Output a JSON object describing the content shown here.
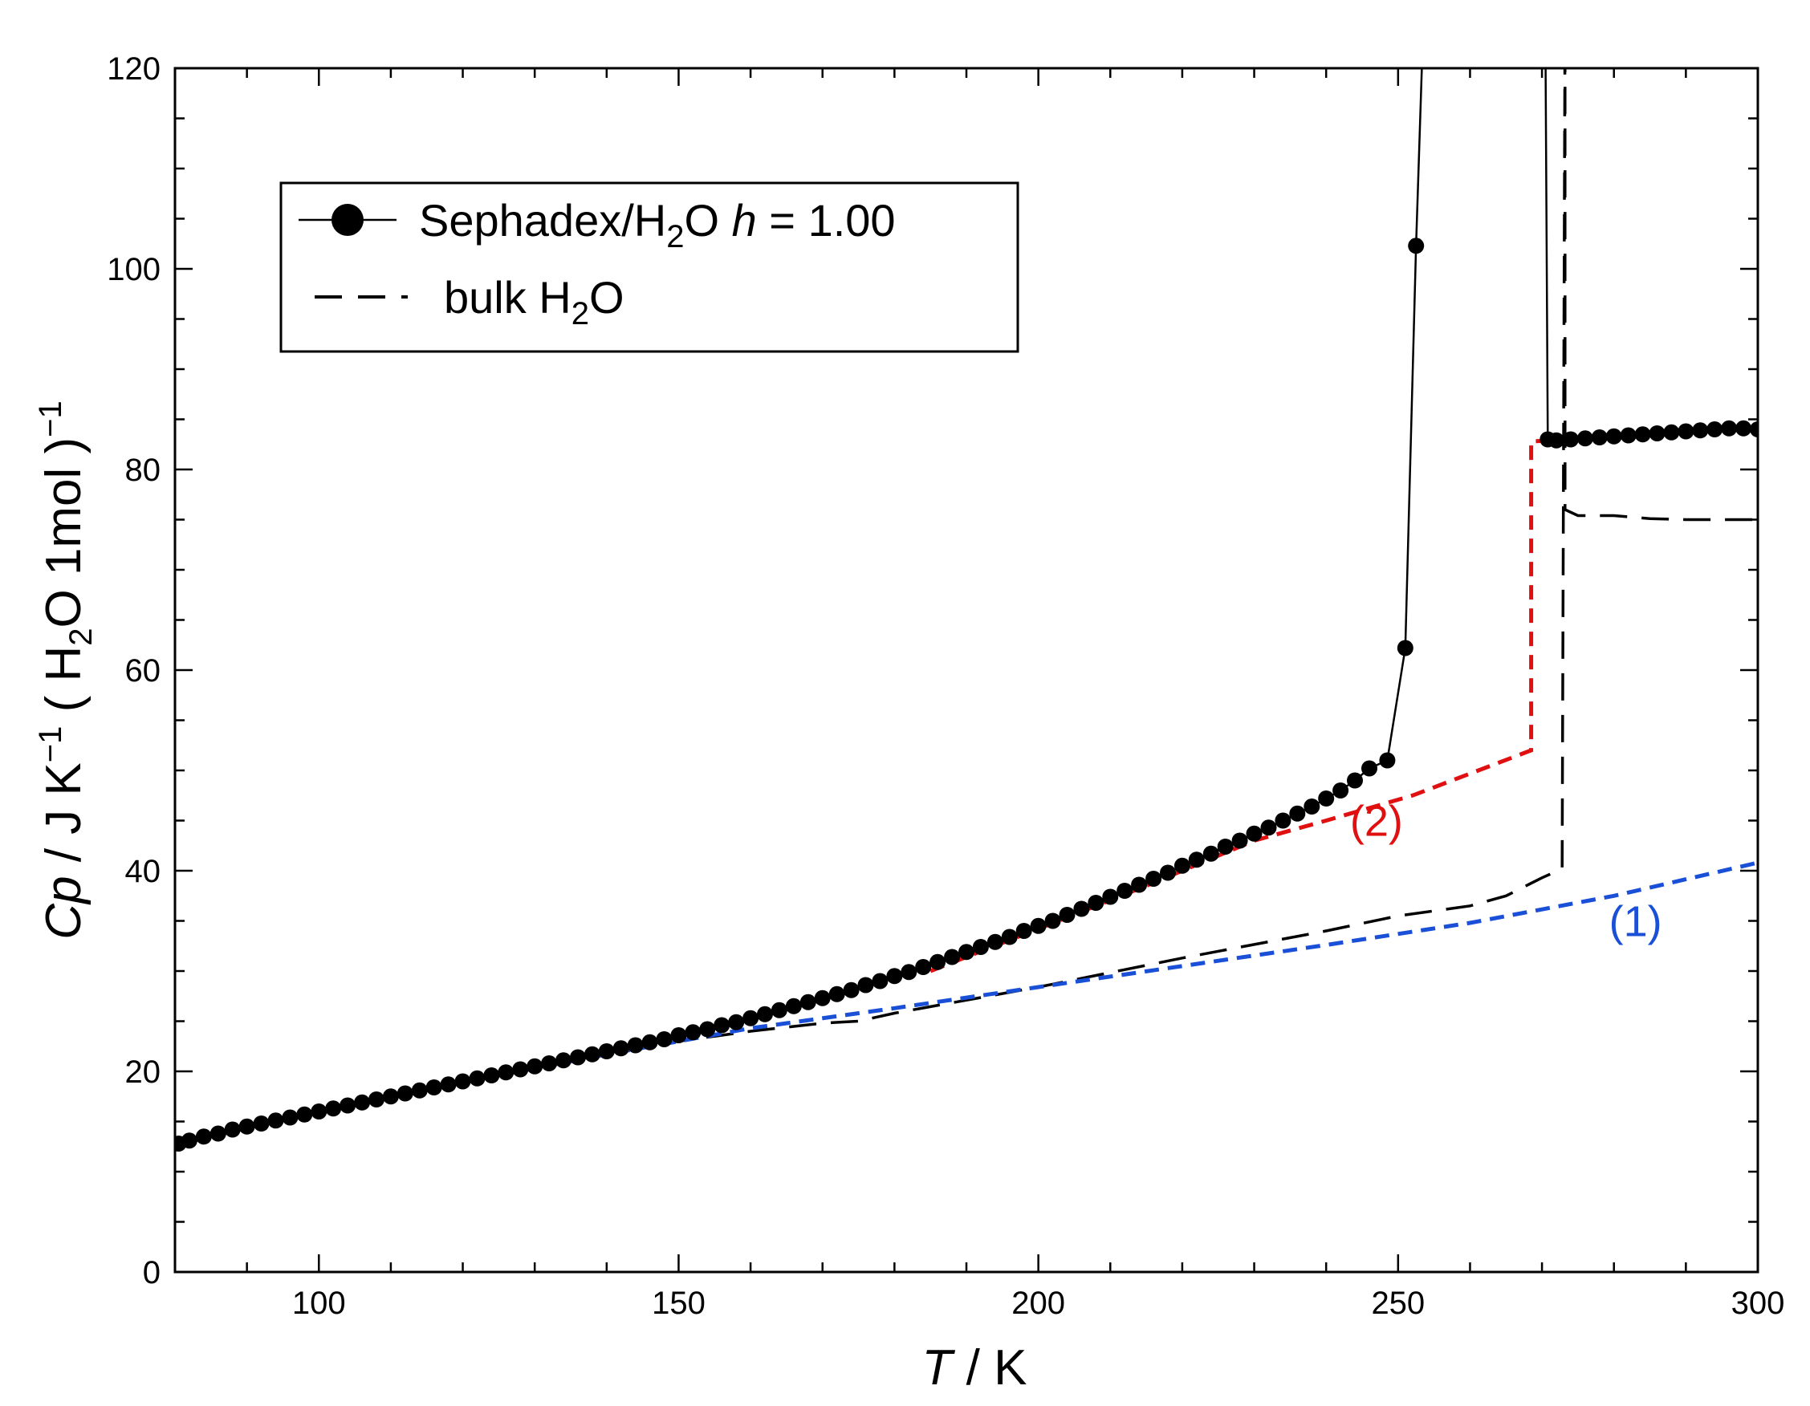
{
  "chart_data": {
    "type": "line",
    "xlabel": {
      "var": "T",
      "unit": "/ K"
    },
    "ylabel": {
      "var": "Cp",
      "unit": "/ J K",
      "sup1": "−1",
      "paren_open": "( H",
      "sub": "2",
      "paren_rest": "O 1mol )",
      "sup2": "−1"
    },
    "xlim": [
      80,
      300
    ],
    "ylim": [
      0,
      120
    ],
    "xticks": [
      100,
      150,
      200,
      250,
      300
    ],
    "yticks": [
      0,
      20,
      40,
      60,
      80,
      100,
      120
    ],
    "x_minor_step": 10,
    "y_minor_step": 5,
    "grid": false,
    "legend_placement": "top-left",
    "legend": [
      {
        "pre": "Sephadex/H",
        "sub": "2",
        "mid": "O ",
        "italic": "h",
        "post": " = 1.00"
      },
      {
        "pre": "bulk H",
        "sub": "2",
        "post": "O"
      }
    ],
    "annotations": [
      {
        "text": "(1)",
        "x": 283,
        "y": 33.5,
        "color": "#1a4fd8"
      },
      {
        "text": "(2)",
        "x": 247,
        "y": 43.5,
        "color": "#e01010"
      }
    ],
    "colors": {
      "series1": "#1a4fd8",
      "series2": "#e01010",
      "data": "#000000"
    },
    "series": [
      {
        "style": "line-markers",
        "color": "#000000",
        "points": [
          [
            80.5,
            12.8
          ],
          [
            82,
            13.1
          ],
          [
            84,
            13.5
          ],
          [
            86,
            13.8
          ],
          [
            88,
            14.2
          ],
          [
            90,
            14.5
          ],
          [
            92,
            14.8
          ],
          [
            94,
            15.1
          ],
          [
            96,
            15.4
          ],
          [
            98,
            15.7
          ],
          [
            100,
            16.0
          ],
          [
            102,
            16.3
          ],
          [
            104,
            16.6
          ],
          [
            106,
            16.9
          ],
          [
            108,
            17.2
          ],
          [
            110,
            17.5
          ],
          [
            112,
            17.8
          ],
          [
            114,
            18.1
          ],
          [
            116,
            18.4
          ],
          [
            118,
            18.7
          ],
          [
            120,
            19.0
          ],
          [
            122,
            19.3
          ],
          [
            124,
            19.6
          ],
          [
            126,
            19.9
          ],
          [
            128,
            20.2
          ],
          [
            130,
            20.5
          ],
          [
            132,
            20.8
          ],
          [
            134,
            21.1
          ],
          [
            136,
            21.4
          ],
          [
            138,
            21.7
          ],
          [
            140,
            22.0
          ],
          [
            142,
            22.3
          ],
          [
            144,
            22.6
          ],
          [
            146,
            22.9
          ],
          [
            148,
            23.2
          ],
          [
            150,
            23.6
          ],
          [
            152,
            23.9
          ],
          [
            154,
            24.2
          ],
          [
            156,
            24.6
          ],
          [
            158,
            24.9
          ],
          [
            160,
            25.3
          ],
          [
            162,
            25.7
          ],
          [
            164,
            26.1
          ],
          [
            166,
            26.5
          ],
          [
            168,
            26.9
          ],
          [
            170,
            27.3
          ],
          [
            172,
            27.7
          ],
          [
            174,
            28.1
          ],
          [
            176,
            28.6
          ],
          [
            178,
            29.0
          ],
          [
            180,
            29.5
          ],
          [
            182,
            29.9
          ],
          [
            184,
            30.4
          ],
          [
            186,
            30.9
          ],
          [
            188,
            31.4
          ],
          [
            190,
            31.9
          ],
          [
            192,
            32.4
          ],
          [
            194,
            32.9
          ],
          [
            196,
            33.4
          ],
          [
            198,
            34.0
          ],
          [
            200,
            34.5
          ],
          [
            202,
            35.0
          ],
          [
            204,
            35.6
          ],
          [
            206,
            36.2
          ],
          [
            208,
            36.8
          ],
          [
            210,
            37.4
          ],
          [
            212,
            38.0
          ],
          [
            214,
            38.6
          ],
          [
            216,
            39.2
          ],
          [
            218,
            39.8
          ],
          [
            220,
            40.5
          ],
          [
            222,
            41.1
          ],
          [
            224,
            41.7
          ],
          [
            226,
            42.4
          ],
          [
            228,
            43.0
          ],
          [
            230,
            43.7
          ],
          [
            232,
            44.3
          ],
          [
            234,
            45.0
          ],
          [
            236,
            45.7
          ],
          [
            238,
            46.4
          ],
          [
            240,
            47.2
          ],
          [
            242,
            48.0
          ],
          [
            244,
            49.0
          ],
          [
            246,
            50.2
          ],
          [
            248.5,
            51.0
          ],
          [
            251,
            62.2
          ],
          [
            252.5,
            102.3
          ]
        ],
        "line_extension": [
          [
            252.5,
            102.3
          ],
          [
            253.3,
            120
          ],
          [
            270.5,
            120
          ],
          [
            270.8,
            83.0
          ],
          [
            272,
            82.9
          ],
          [
            274,
            83.0
          ],
          [
            276,
            83.1
          ],
          [
            278,
            83.2
          ],
          [
            280,
            83.3
          ],
          [
            282,
            83.4
          ],
          [
            284,
            83.5
          ],
          [
            286,
            83.6
          ],
          [
            288,
            83.7
          ],
          [
            290,
            83.8
          ],
          [
            292,
            83.9
          ],
          [
            294,
            84.0
          ],
          [
            296,
            84.1
          ],
          [
            298,
            84.1
          ],
          [
            300,
            84.0
          ]
        ],
        "upper_points": [
          [
            270.8,
            83.0
          ],
          [
            272,
            82.9
          ],
          [
            274,
            83.0
          ],
          [
            276,
            83.1
          ],
          [
            278,
            83.2
          ],
          [
            280,
            83.3
          ],
          [
            282,
            83.4
          ],
          [
            284,
            83.5
          ],
          [
            286,
            83.6
          ],
          [
            288,
            83.7
          ],
          [
            290,
            83.8
          ],
          [
            292,
            83.9
          ],
          [
            294,
            84.0
          ],
          [
            296,
            84.1
          ],
          [
            298,
            84.1
          ],
          [
            300,
            84.0
          ]
        ]
      },
      {
        "style": "long-dash",
        "color": "#000000",
        "points": [
          [
            80,
            12.6
          ],
          [
            100,
            16.0
          ],
          [
            120,
            19.1
          ],
          [
            140,
            22.0
          ],
          [
            160,
            24.0
          ],
          [
            170,
            24.8
          ],
          [
            175,
            25.0
          ],
          [
            180,
            25.8
          ],
          [
            200,
            28.4
          ],
          [
            220,
            31.3
          ],
          [
            240,
            34.0
          ],
          [
            250,
            35.5
          ],
          [
            260,
            36.5
          ],
          [
            265,
            37.5
          ],
          [
            270,
            39.3
          ],
          [
            272.8,
            40.2
          ],
          [
            273.2,
            125
          ],
          [
            273.2,
            76
          ],
          [
            275,
            75.4
          ],
          [
            280,
            75.4
          ],
          [
            285,
            75.1
          ],
          [
            290,
            75.0
          ],
          [
            300,
            75.0
          ]
        ]
      },
      {
        "style": "short-dash",
        "color": "#1a4fd8",
        "points": [
          [
            100,
            15.9
          ],
          [
            120,
            18.9
          ],
          [
            140,
            21.7
          ],
          [
            160,
            24.3
          ],
          [
            180,
            26.3
          ],
          [
            200,
            28.4
          ],
          [
            220,
            30.5
          ],
          [
            240,
            32.6
          ],
          [
            260,
            34.8
          ],
          [
            280,
            37.5
          ],
          [
            300,
            40.8
          ]
        ]
      },
      {
        "style": "short-dash",
        "color": "#e01010",
        "points": [
          [
            185,
            30.0
          ],
          [
            200,
            34.2
          ],
          [
            215,
            38.5
          ],
          [
            230,
            43.0
          ],
          [
            240,
            45.0
          ],
          [
            252,
            47.5
          ],
          [
            268.5,
            52.0
          ],
          [
            268.5,
            82.8
          ],
          [
            272,
            82.9
          ],
          [
            276,
            83.1
          ],
          [
            280,
            83.4
          ],
          [
            290,
            83.8
          ],
          [
            300,
            84.0
          ]
        ]
      }
    ]
  }
}
